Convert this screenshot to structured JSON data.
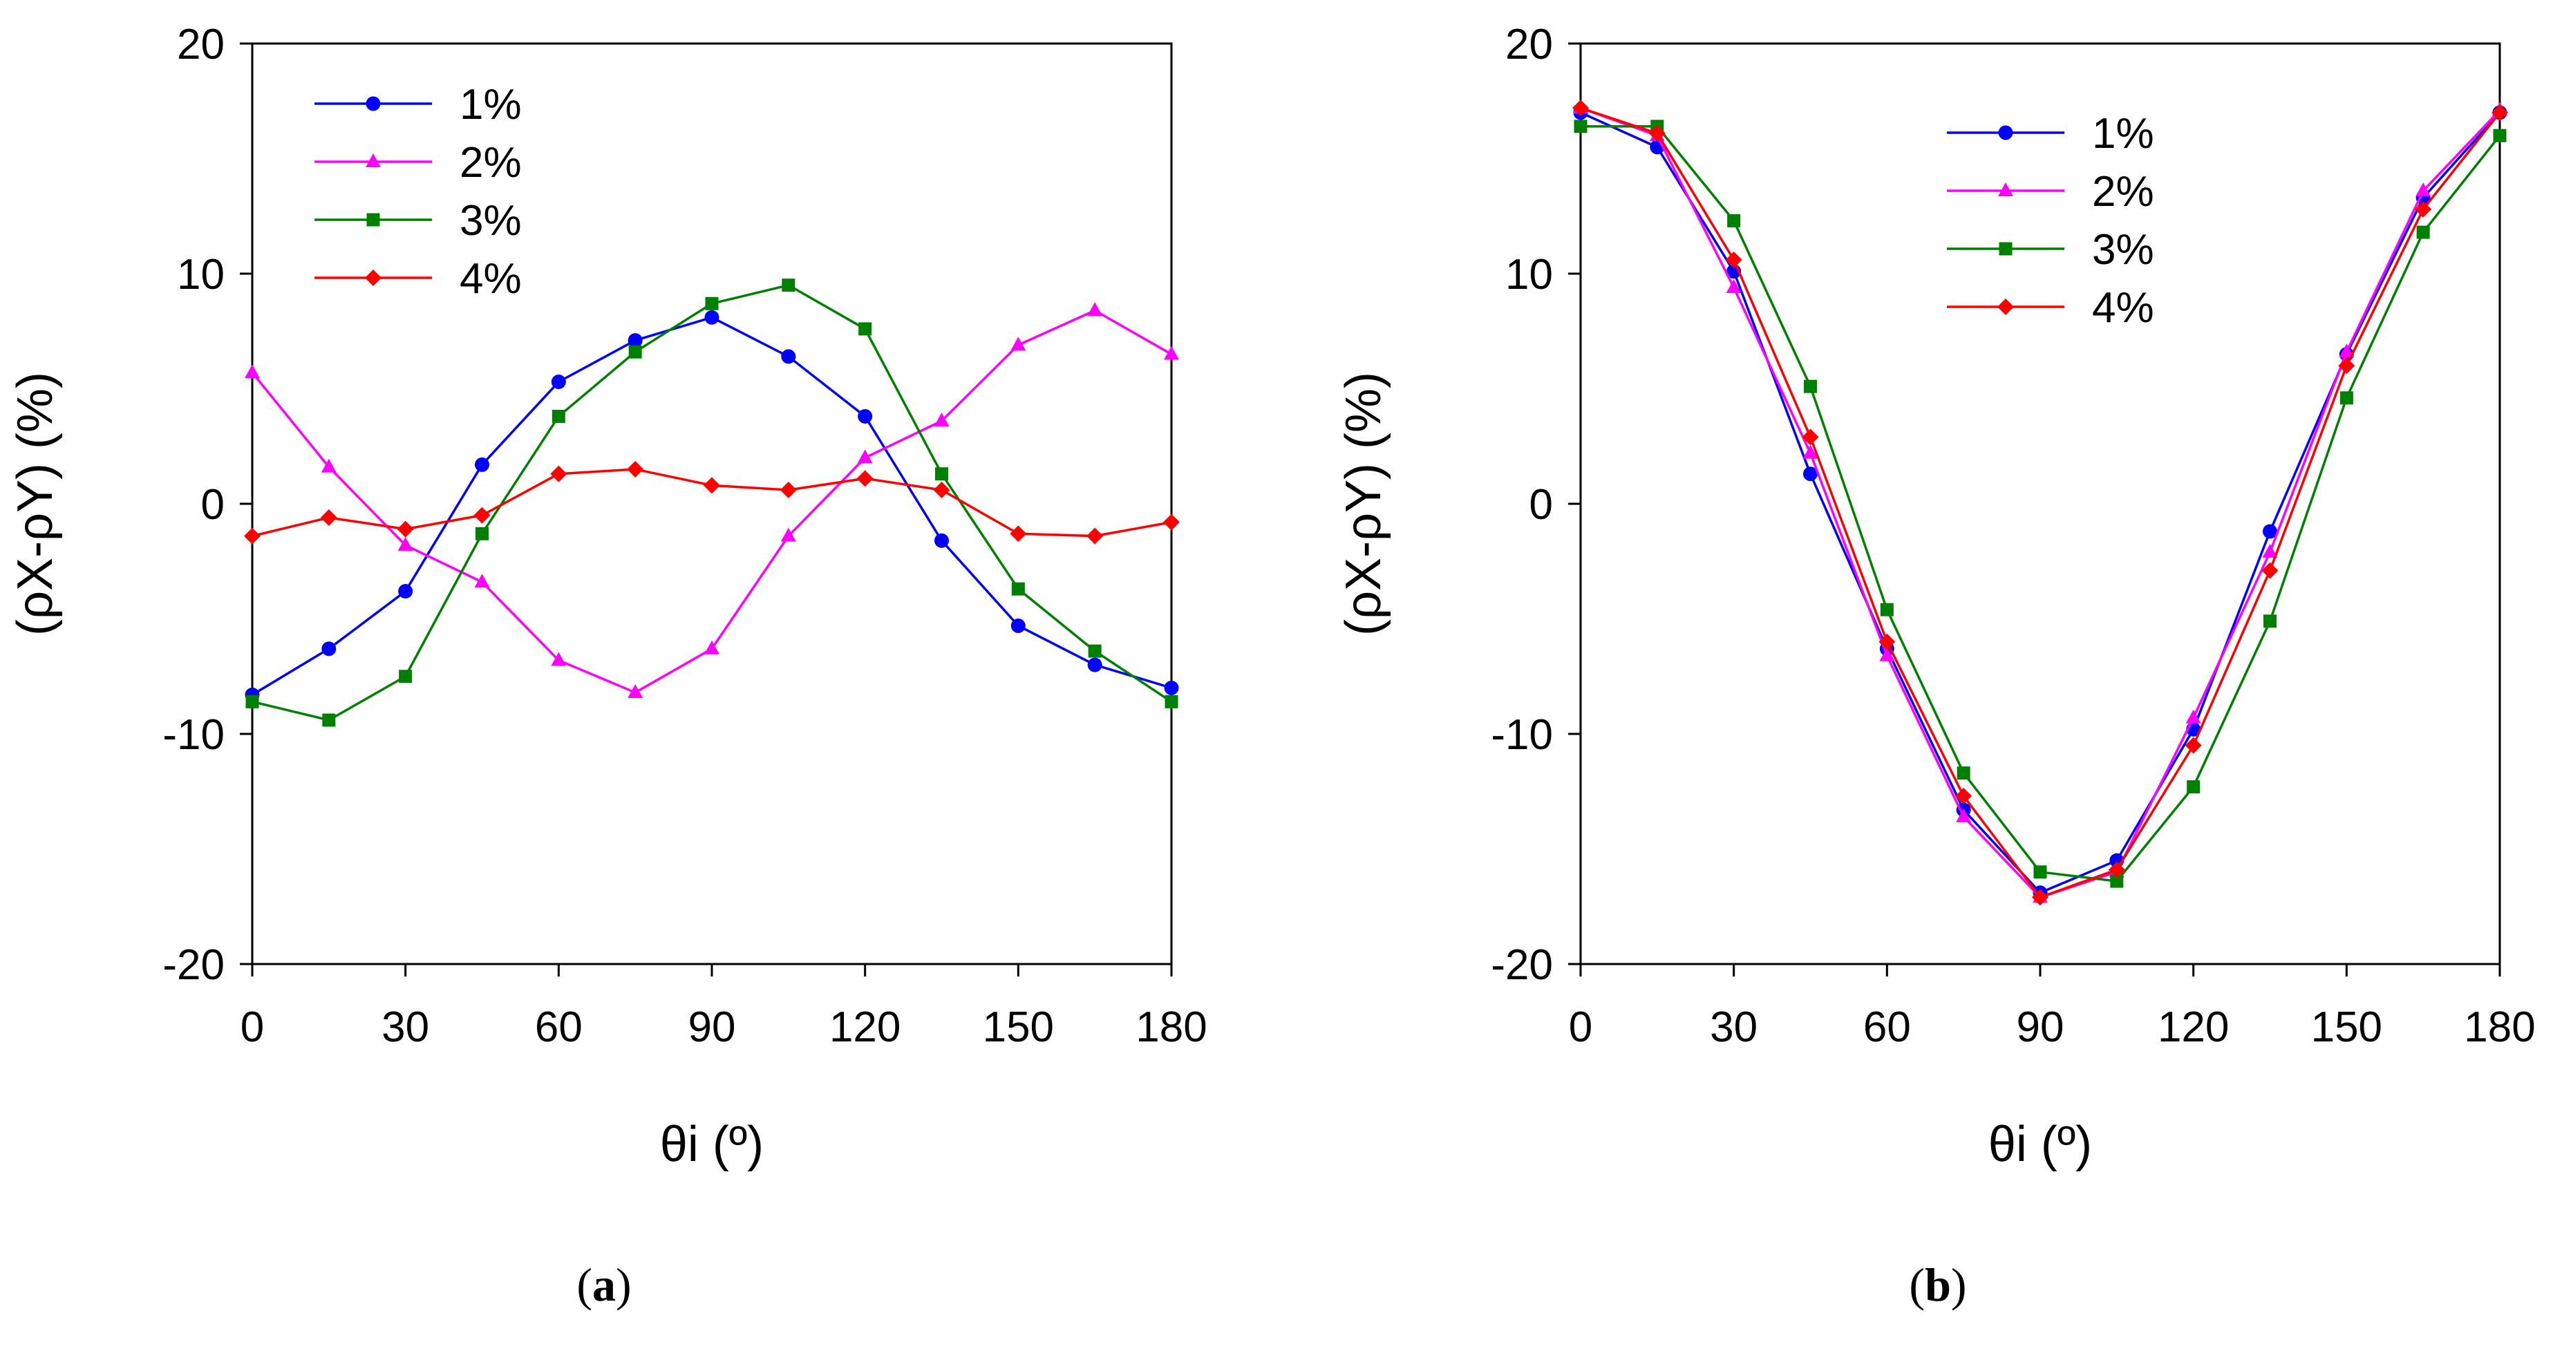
{
  "chart_data": [
    {
      "type": "line",
      "panel_label": "a",
      "xlabel": "θi (º)",
      "ylabel": "(ρX-ρY) (%)",
      "xlim": [
        0,
        180
      ],
      "ylim": [
        -20,
        20
      ],
      "xticks": [
        0,
        30,
        60,
        90,
        120,
        150,
        180
      ],
      "yticks": [
        -20,
        -10,
        0,
        10,
        20
      ],
      "grid": false,
      "legend_position": "top-left",
      "x": [
        0,
        15,
        30,
        45,
        60,
        75,
        90,
        105,
        120,
        135,
        150,
        165,
        180
      ],
      "series": [
        {
          "name": "1%",
          "color": "#0000ff",
          "marker": "circle",
          "values": [
            -8.3,
            -6.3,
            -3.8,
            1.7,
            5.3,
            7.1,
            8.1,
            6.4,
            3.8,
            -1.6,
            -5.3,
            -7.0,
            -8.0
          ]
        },
        {
          "name": "2%",
          "color": "#ff00ff",
          "marker": "triangle",
          "values": [
            5.7,
            1.6,
            -1.8,
            -3.4,
            -6.8,
            -8.2,
            -6.3,
            -1.4,
            2.0,
            3.6,
            6.9,
            8.4,
            6.5
          ]
        },
        {
          "name": "3%",
          "color": "#008000",
          "marker": "square",
          "values": [
            -8.6,
            -9.4,
            -7.5,
            -1.3,
            3.8,
            6.6,
            8.7,
            9.5,
            7.6,
            1.3,
            -3.7,
            -6.4,
            -8.6
          ]
        },
        {
          "name": "4%",
          "color": "#ff0000",
          "marker": "diamond",
          "values": [
            -1.4,
            -0.6,
            -1.1,
            -0.5,
            1.3,
            1.5,
            0.8,
            0.6,
            1.1,
            0.6,
            -1.3,
            -1.4,
            -0.8
          ]
        }
      ]
    },
    {
      "type": "line",
      "panel_label": "b",
      "xlabel": "θi (º)",
      "ylabel": "(ρX-ρY) (%)",
      "xlim": [
        0,
        180
      ],
      "ylim": [
        -20,
        20
      ],
      "xticks": [
        0,
        30,
        60,
        90,
        120,
        150,
        180
      ],
      "yticks": [
        -20,
        -10,
        0,
        10,
        20
      ],
      "grid": false,
      "legend_position": "top-right",
      "x": [
        0,
        15,
        30,
        45,
        60,
        75,
        90,
        105,
        120,
        135,
        150,
        165,
        180
      ],
      "series": [
        {
          "name": "1%",
          "color": "#0000ff",
          "marker": "circle",
          "values": [
            17.0,
            15.5,
            10.1,
            1.3,
            -6.3,
            -13.3,
            -16.9,
            -15.5,
            -9.8,
            -1.2,
            6.5,
            13.3,
            17.0
          ]
        },
        {
          "name": "2%",
          "color": "#ff00ff",
          "marker": "triangle",
          "values": [
            17.2,
            16.0,
            9.4,
            2.2,
            -6.6,
            -13.6,
            -17.1,
            -16.0,
            -9.3,
            -2.1,
            6.6,
            13.6,
            17.1
          ]
        },
        {
          "name": "3%",
          "color": "#008000",
          "marker": "square",
          "values": [
            16.4,
            16.4,
            12.3,
            5.1,
            -4.6,
            -11.7,
            -16.0,
            -16.4,
            -12.3,
            -5.1,
            4.6,
            11.8,
            16.0
          ]
        },
        {
          "name": "4%",
          "color": "#ff0000",
          "marker": "diamond",
          "values": [
            17.2,
            16.1,
            10.6,
            2.9,
            -6.0,
            -12.7,
            -17.1,
            -15.9,
            -10.5,
            -2.9,
            6.0,
            12.8,
            17.0
          ]
        }
      ]
    }
  ]
}
